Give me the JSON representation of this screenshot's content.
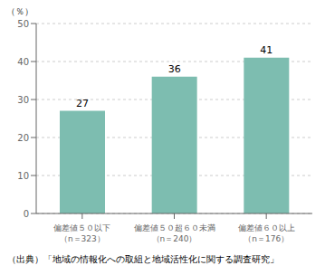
{
  "chart_data": {
    "type": "bar",
    "categories": [
      "偏差値５０以下\n（n＝323）",
      "偏差値５０超６０未満\n（n＝240）",
      "偏差値６０以上\n（n＝176）"
    ],
    "values": [
      27,
      36,
      41
    ],
    "color": "#7dbdb0",
    "ylabel": "（％）",
    "ylim": [
      0,
      50
    ],
    "yticks": [
      0,
      10,
      20,
      30,
      40,
      50
    ],
    "grid": true,
    "data_labels": true,
    "caption": "（出典）「地域の情報化への取組と地域活性化に関する調査研究」"
  }
}
